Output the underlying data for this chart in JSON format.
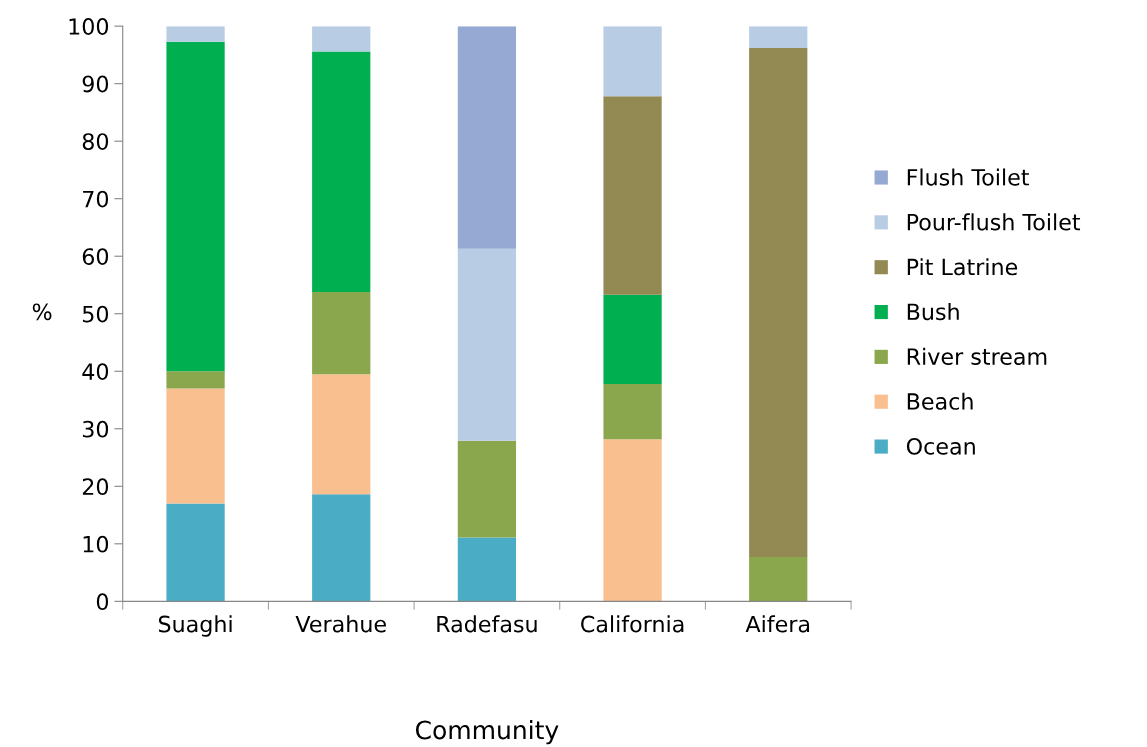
{
  "chart_data": {
    "type": "bar",
    "stacked": true,
    "xlabel": "Community",
    "ylabel": "%",
    "categories": [
      "Suaghi",
      "Verahue",
      "Radefasu",
      "California",
      "Aifera"
    ],
    "series": [
      {
        "name": "Ocean",
        "color": "#4bacc6",
        "values": [
          17,
          18.6,
          11.1,
          0,
          0
        ]
      },
      {
        "name": "Beach",
        "color": "#f9bf8f",
        "values": [
          20,
          20.9,
          0,
          28.2,
          0
        ]
      },
      {
        "name": "River stream",
        "color": "#8aa74e",
        "values": [
          3,
          14.3,
          16.8,
          9.6,
          7.7
        ]
      },
      {
        "name": "Bush",
        "color": "#00b050",
        "values": [
          57.3,
          41.8,
          0,
          15.5,
          0
        ]
      },
      {
        "name": "Pit Latrine",
        "color": "#938953",
        "values": [
          0,
          0,
          0,
          34.5,
          88.5
        ]
      },
      {
        "name": "Pour-flush Toilet",
        "color": "#b8cce4",
        "values": [
          2.7,
          4.4,
          33.4,
          12.2,
          3.8
        ]
      },
      {
        "name": "Flush Toilet",
        "color": "#95a9d2",
        "values": [
          0,
          0,
          38.7,
          0,
          0
        ]
      }
    ],
    "ylim": [
      0,
      100
    ],
    "yticks": [
      0,
      10,
      20,
      30,
      40,
      50,
      60,
      70,
      80,
      90,
      100
    ],
    "grid": false,
    "legend": "right"
  }
}
